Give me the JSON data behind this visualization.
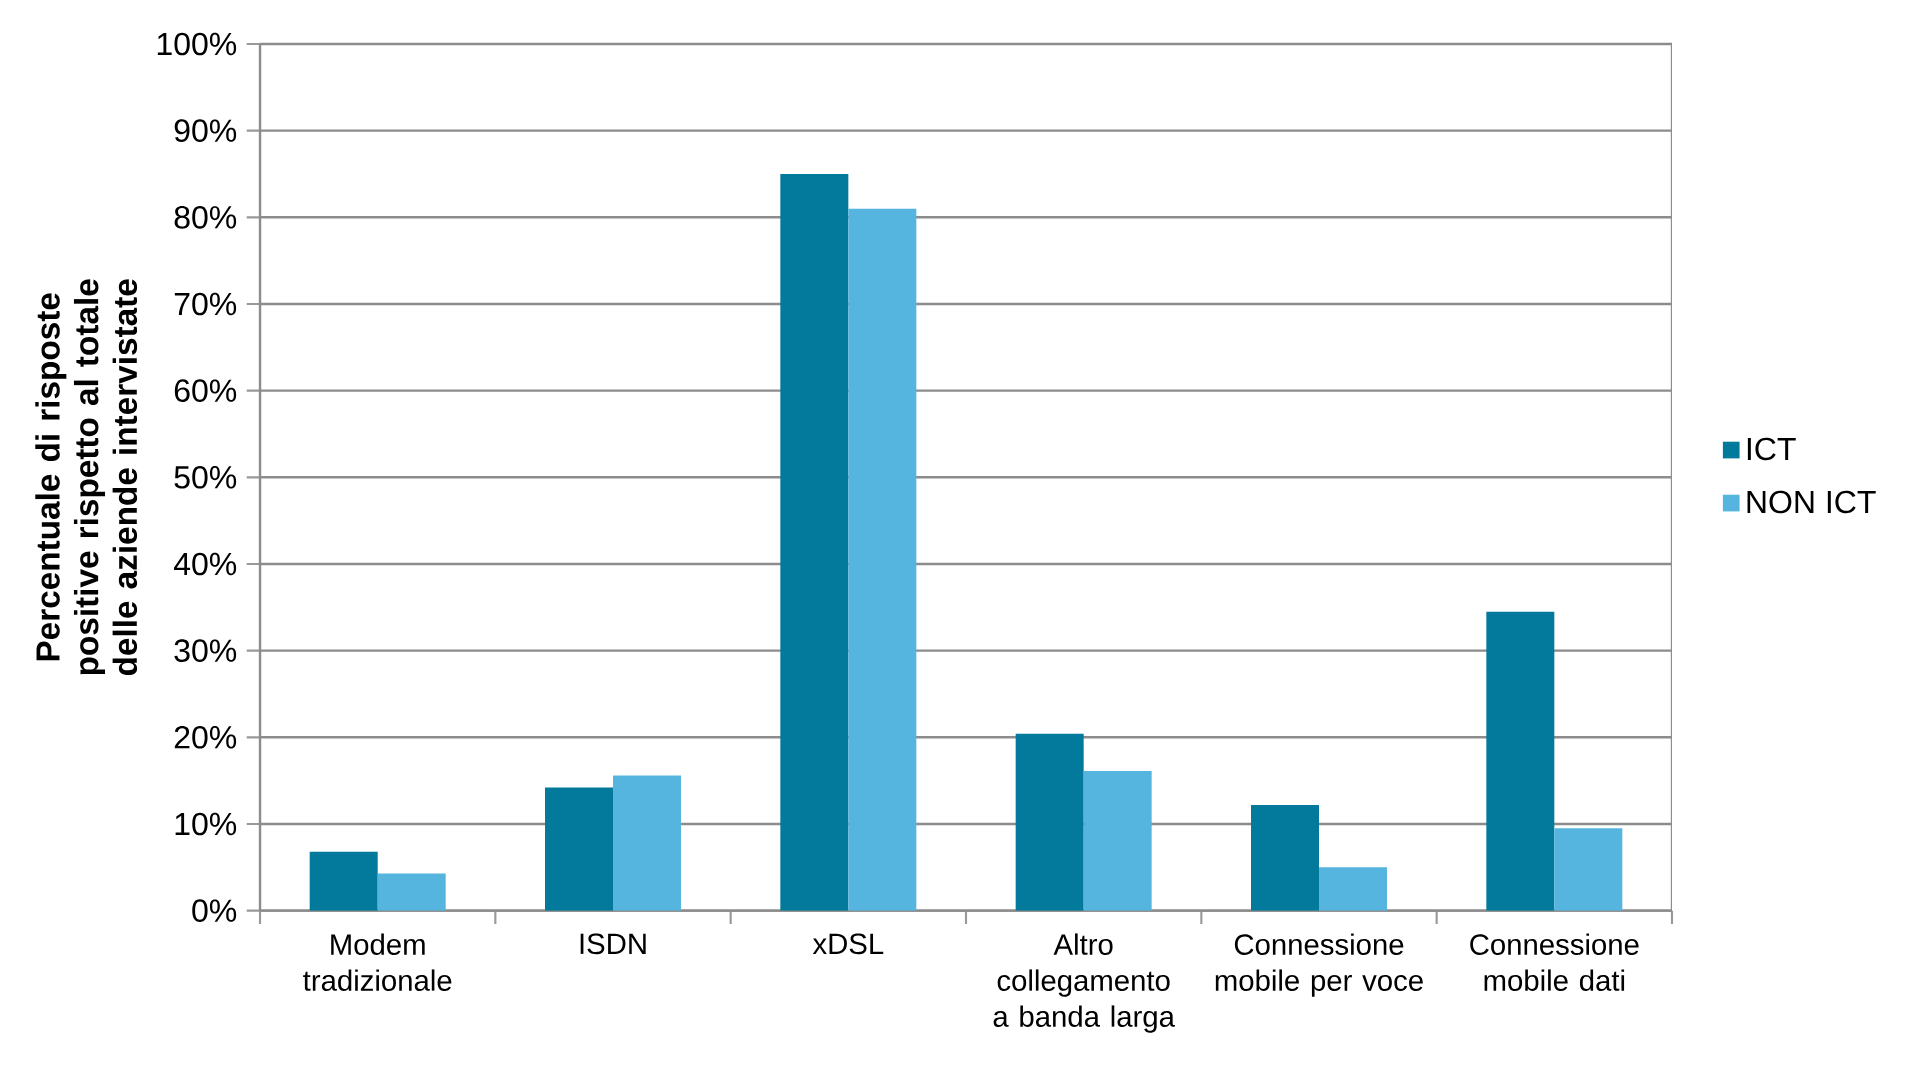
{
  "chart_data": {
    "type": "bar",
    "ylabel": "Percentuale di risposte positive rispetto al totale delle aziende intervistate",
    "categories": [
      "Modem tradizionale",
      "ISDN",
      "xDSL",
      "Altro collegamento a banda larga",
      "Connessione mobile per voce",
      "Connessione mobile dati"
    ],
    "series": [
      {
        "name": "ICT",
        "color": "#037a9b",
        "values": [
          6.8,
          14.2,
          85,
          20.4,
          12.2,
          34.5
        ]
      },
      {
        "name": "NON ICT",
        "color": "#55b5df",
        "values": [
          4.3,
          15.6,
          81,
          16.1,
          5.0,
          9.5
        ]
      }
    ],
    "ylim": [
      0,
      100
    ],
    "yticks": [
      {
        "value": 0,
        "label": "0%"
      },
      {
        "value": 10,
        "label": "10%"
      },
      {
        "value": 20,
        "label": "20%"
      },
      {
        "value": 30,
        "label": "30%"
      },
      {
        "value": 40,
        "label": "40%"
      },
      {
        "value": 50,
        "label": "50%"
      },
      {
        "value": 60,
        "label": "60%"
      },
      {
        "value": 70,
        "label": "70%"
      },
      {
        "value": 80,
        "label": "80%"
      },
      {
        "value": 90,
        "label": "90%"
      },
      {
        "value": 100,
        "label": "100%"
      }
    ],
    "grid": "y",
    "legend": "right"
  }
}
